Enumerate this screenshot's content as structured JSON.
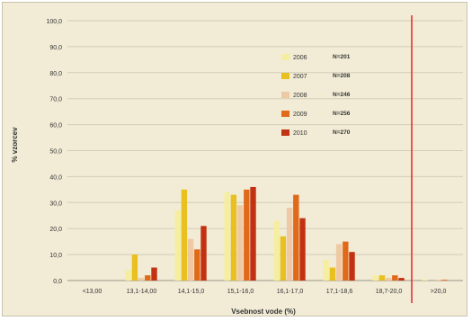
{
  "chart_data": {
    "type": "bar",
    "title": "",
    "xlabel": "Vsebnost vode (%)",
    "ylabel": "% vzorcev",
    "ylim": [
      0,
      100
    ],
    "yticks": [
      "0,0",
      "10,0",
      "20,0",
      "30,0",
      "40,0",
      "50,0",
      "60,0",
      "70,0",
      "80,0",
      "90,0",
      "100,0"
    ],
    "grid": true,
    "legend_position": "top-center",
    "categories": [
      "<13,00",
      "13,1-14,00",
      "14,1-15,0",
      "15,1-16,0",
      "16,1-17,0",
      "17,1-18,6",
      "18,7-20,0",
      ">20,0"
    ],
    "series": [
      {
        "name": "2006",
        "n_label": "N=201",
        "color": "#f5eea0",
        "values": [
          0,
          4,
          27,
          34,
          23,
          8,
          2,
          0.5
        ]
      },
      {
        "name": "2007",
        "n_label": "N=208",
        "color": "#e8c020",
        "values": [
          0,
          10,
          35,
          33,
          17,
          5,
          2,
          0
        ]
      },
      {
        "name": "2008",
        "n_label": "N=246",
        "color": "#efc9a4",
        "values": [
          0,
          1,
          16,
          29,
          28,
          14,
          1,
          0.3
        ]
      },
      {
        "name": "2009",
        "n_label": "N=256",
        "color": "#e06a1a",
        "values": [
          0,
          2,
          12,
          35,
          33,
          15,
          2,
          0.3
        ]
      },
      {
        "name": "2010",
        "n_label": "N=270",
        "color": "#c23212",
        "values": [
          0,
          5,
          21,
          36,
          24,
          11,
          1,
          0
        ]
      }
    ],
    "threshold_color": "#e8252a"
  }
}
